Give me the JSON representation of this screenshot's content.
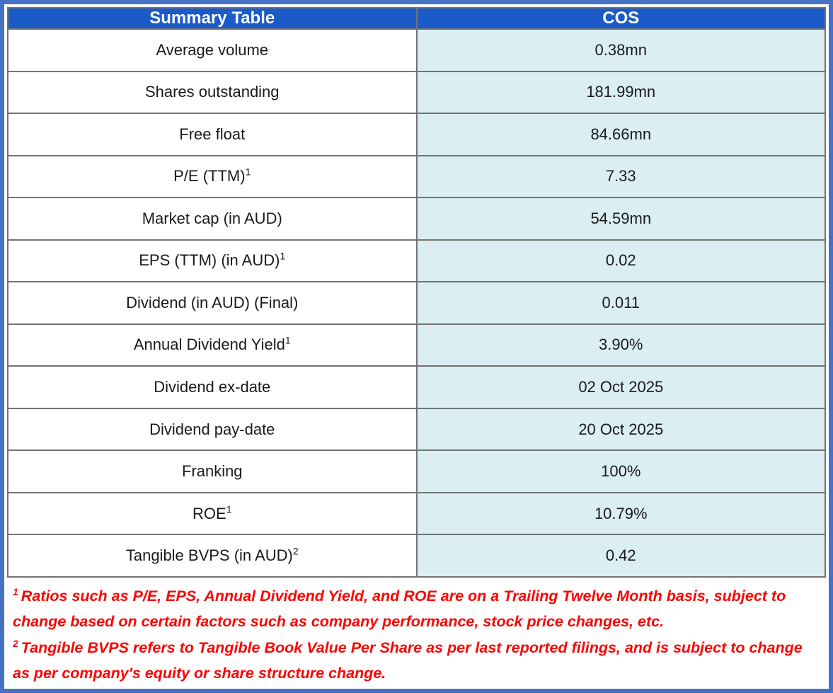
{
  "table": {
    "header": {
      "label_col": "Summary Table",
      "value_col": "COS"
    },
    "rows": [
      {
        "label": "Average volume",
        "sup": "",
        "value": "0.38mn"
      },
      {
        "label": "Shares outstanding",
        "sup": "",
        "value": "181.99mn"
      },
      {
        "label": "Free float",
        "sup": "",
        "value": "84.66mn"
      },
      {
        "label": "P/E (TTM)",
        "sup": "1",
        "value": "7.33"
      },
      {
        "label": "Market cap (in AUD)",
        "sup": "",
        "value": "54.59mn"
      },
      {
        "label": "EPS (TTM) (in AUD)",
        "sup": "1",
        "value": "0.02"
      },
      {
        "label": "Dividend (in AUD) (Final)",
        "sup": "",
        "value": "0.011"
      },
      {
        "label": "Annual Dividend Yield",
        "sup": "1",
        "value": "3.90%"
      },
      {
        "label": "Dividend ex-date",
        "sup": "",
        "value": "02 Oct 2025"
      },
      {
        "label": "Dividend pay-date",
        "sup": "",
        "value": "20 Oct 2025"
      },
      {
        "label": "Franking",
        "sup": "",
        "value": "100%"
      },
      {
        "label": "ROE",
        "sup": "1",
        "value": "10.79%"
      },
      {
        "label": "Tangible BVPS (in AUD)",
        "sup": "2",
        "value": "0.42"
      }
    ]
  },
  "footnotes": [
    {
      "marker": "1",
      "text": "Ratios such as P/E, EPS, Annual Dividend Yield, and ROE are on a Trailing Twelve Month basis, subject to change based on certain factors such as company performance, stock price changes, etc."
    },
    {
      "marker": "2",
      "text": "Tangible BVPS refers to Tangible Book Value Per Share as per last reported filings, and is subject to change as per company's equity or share structure change."
    }
  ],
  "colors": {
    "header_bg": "#1b5ac9",
    "header_text": "#ffffff",
    "label_cell_bg": "#ffffff",
    "value_cell_bg": "#daeef3",
    "grid_border": "#737373",
    "outer_border": "#4472c4",
    "body_text": "#1a1a1a",
    "footnote_text": "#ff0000"
  }
}
